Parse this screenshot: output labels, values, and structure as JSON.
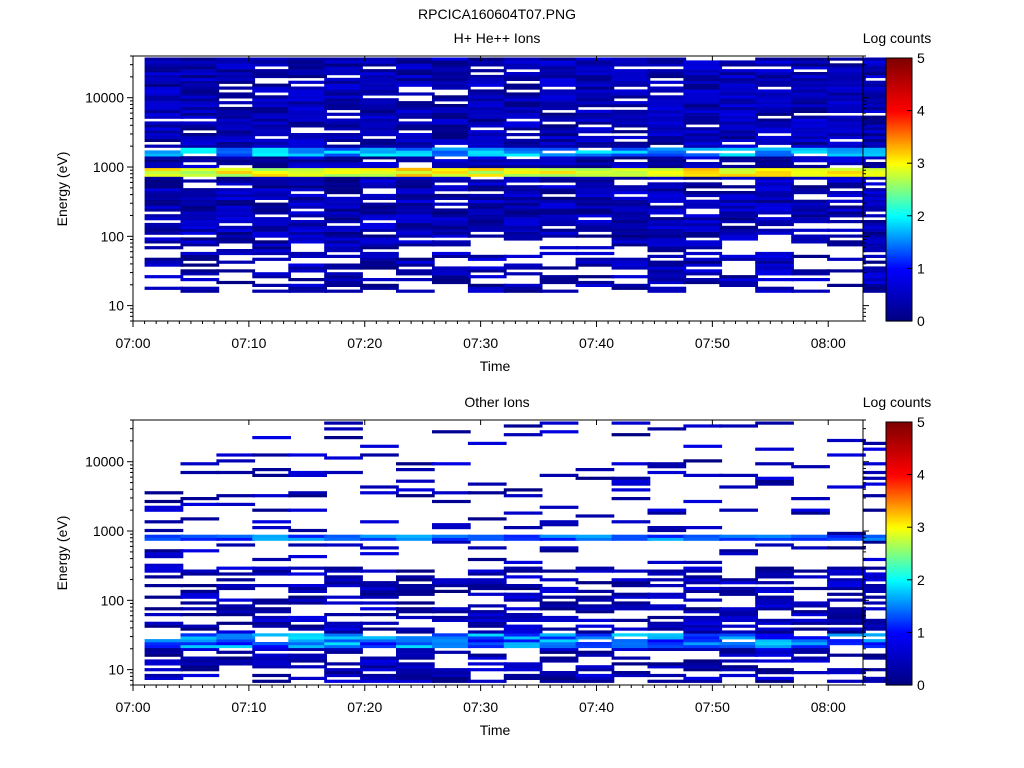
{
  "title": "RPCICA160604T07.PNG",
  "colors": {
    "colormap": [
      "#00007f",
      "#0000ff",
      "#00ffff",
      "#ffff00",
      "#ff0000",
      "#7f0000"
    ],
    "axis": "#000000",
    "background": "#ffffff"
  },
  "chart_data": [
    {
      "type": "heatmap",
      "title": "H+ He++ Ions",
      "xlabel": "Time",
      "ylabel": "Energy (eV)",
      "x_ticks": [
        "07:00",
        "07:10",
        "07:20",
        "07:30",
        "07:40",
        "07:50",
        "08:00"
      ],
      "y_ticks": [
        "10",
        "100",
        "1000",
        "10000"
      ],
      "y_scale": "log",
      "ylim": [
        6,
        40000
      ],
      "xlim_minutes": [
        0,
        63
      ],
      "colorbar": {
        "label": "Log counts",
        "ticks": [
          "0",
          "1",
          "2",
          "3",
          "4",
          "5"
        ],
        "range": [
          0,
          5
        ]
      },
      "time_bins": [
        "07:01",
        "07:04",
        "07:07",
        "07:10",
        "07:13",
        "07:16",
        "07:19",
        "07:22",
        "07:25",
        "07:28",
        "07:31",
        "07:34",
        "07:37",
        "07:40",
        "07:43",
        "07:46",
        "07:49",
        "07:52",
        "07:55",
        "07:58",
        "08:01"
      ],
      "features": {
        "peak_energy_eV": [
          700,
          1000
        ],
        "peak_log_counts": [
          2.6,
          3.3
        ],
        "secondary_band_eV": [
          1500,
          2000
        ],
        "secondary_band_log_counts": [
          1.2,
          2.0
        ],
        "background_log_counts": [
          0.0,
          0.8
        ],
        "background_energy_eV": [
          15,
          40000
        ]
      }
    },
    {
      "type": "heatmap",
      "title": "Other Ions",
      "xlabel": "Time",
      "ylabel": "Energy (eV)",
      "x_ticks": [
        "07:00",
        "07:10",
        "07:20",
        "07:30",
        "07:40",
        "07:50",
        "08:00"
      ],
      "y_ticks": [
        "10",
        "100",
        "1000",
        "10000"
      ],
      "y_scale": "log",
      "ylim": [
        6,
        40000
      ],
      "xlim_minutes": [
        0,
        63
      ],
      "colorbar": {
        "label": "Log counts",
        "ticks": [
          "0",
          "1",
          "2",
          "3",
          "4",
          "5"
        ],
        "range": [
          0,
          5
        ]
      },
      "time_bins": [
        "07:01",
        "07:04",
        "07:07",
        "07:10",
        "07:13",
        "07:16",
        "07:19",
        "07:22",
        "07:25",
        "07:28",
        "07:31",
        "07:34",
        "07:37",
        "07:40",
        "07:43",
        "07:46",
        "07:49",
        "07:52",
        "07:55",
        "07:58",
        "08:01"
      ],
      "features": {
        "peak_energy_eV": [
          750,
          900
        ],
        "peak_log_counts": [
          1.0,
          1.7
        ],
        "low_energy_band_eV": [
          20,
          35
        ],
        "low_energy_band_log_counts": [
          0.9,
          1.9
        ],
        "background_log_counts": [
          0.0,
          0.8
        ],
        "background_energy_eV": [
          6,
          40000
        ]
      }
    }
  ]
}
